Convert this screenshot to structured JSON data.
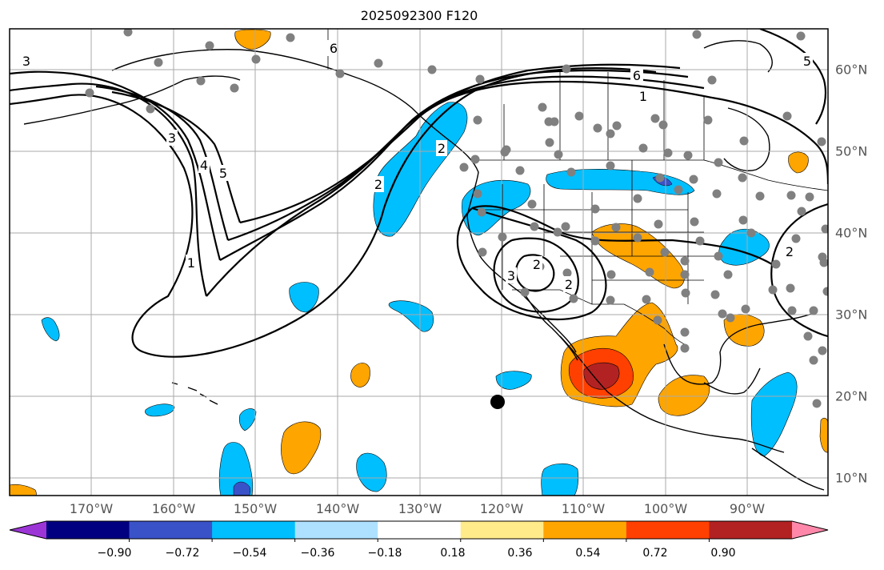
{
  "title": "2025092300 F120",
  "colors": {
    "ocean": "#ffffff",
    "grid": "#aaaaaa",
    "coast": "#000000",
    "contour": "#000000",
    "station": "#808080",
    "marker": "#000000"
  },
  "map": {
    "lon_range": [
      -180,
      -80
    ],
    "lat_range": [
      8,
      65
    ],
    "lon_labels": [
      "170°W",
      "160°W",
      "150°W",
      "140°W",
      "130°W",
      "120°W",
      "110°W",
      "100°W",
      "90°W"
    ],
    "lat_labels": [
      "60°N",
      "50°N",
      "40°N",
      "30°N",
      "20°N",
      "10°N"
    ],
    "contour_labels": [
      "6",
      "6",
      "1",
      "2",
      "3",
      "1",
      "4",
      "5",
      "3",
      "2",
      "2",
      "3",
      "2",
      "5",
      "2"
    ]
  },
  "colorbar": {
    "colors": [
      "#9c35d6",
      "#000080",
      "#3a52c8",
      "#00bfff",
      "#aee1ff",
      "#ffffff",
      "#ffeb8a",
      "#ffa500",
      "#ff4000",
      "#b22222",
      "#ff88aa"
    ],
    "tick_labels": [
      "−0.90",
      "−0.72",
      "−0.54",
      "−0.36",
      "−0.18",
      "0.18",
      "0.36",
      "0.54",
      "0.72",
      "0.90"
    ]
  }
}
